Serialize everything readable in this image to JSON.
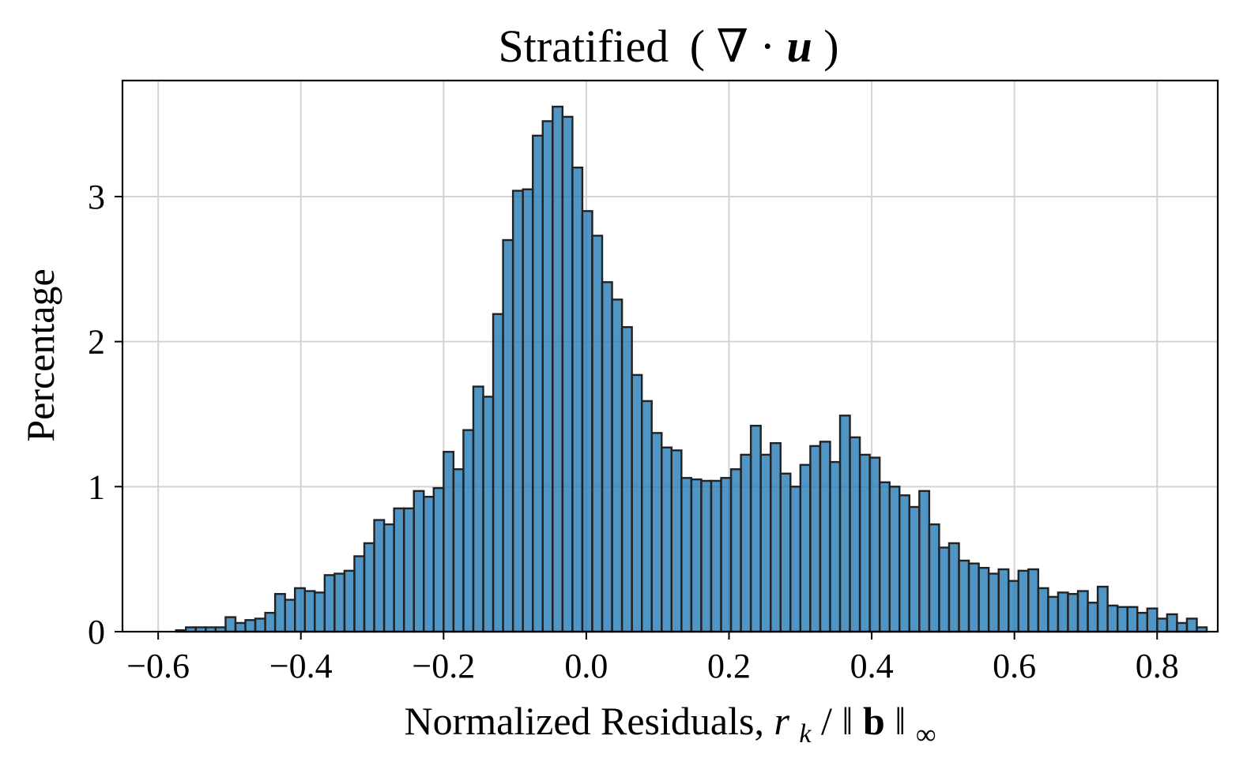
{
  "chart_data": {
    "type": "bar",
    "title": "Stratified (∇ · u)",
    "title_parts": {
      "text": "Stratified",
      "open": "(",
      "nabla": "∇",
      "dot": " · ",
      "var": "u",
      "close": ")"
    },
    "xlabel": "Normalized Residuals, r_k/‖b‖_∞",
    "xlabel_parts": {
      "text": "Normalized Residuals, ",
      "r": "r",
      "k": "k",
      "slash": "/",
      "norm_open": "‖",
      "b": "b",
      "norm_close": "‖",
      "inf": "∞"
    },
    "ylabel": "Percentage",
    "xlim": [
      -0.65,
      0.885
    ],
    "ylim": [
      0,
      3.8
    ],
    "grid": true,
    "bar_color": "#1f77b4",
    "edge_color": "#222222",
    "grid_color": "#d3d3d3",
    "x_ticks": [
      {
        "value": -0.6,
        "label": "−0.6"
      },
      {
        "value": -0.4,
        "label": "−0.4"
      },
      {
        "value": -0.2,
        "label": "−0.2"
      },
      {
        "value": 0.0,
        "label": "0.0"
      },
      {
        "value": 0.2,
        "label": "0.2"
      },
      {
        "value": 0.4,
        "label": "0.4"
      },
      {
        "value": 0.6,
        "label": "0.6"
      },
      {
        "value": 0.8,
        "label": "0.8"
      }
    ],
    "y_ticks": [
      {
        "value": 0,
        "label": "0"
      },
      {
        "value": 1,
        "label": "1"
      },
      {
        "value": 2,
        "label": "2"
      },
      {
        "value": 3,
        "label": "3"
      }
    ],
    "bin_start": -0.575,
    "bin_width": 0.01389,
    "values": [
      0.01,
      0.03,
      0.03,
      0.03,
      0.03,
      0.1,
      0.06,
      0.08,
      0.09,
      0.13,
      0.26,
      0.22,
      0.3,
      0.28,
      0.27,
      0.39,
      0.4,
      0.42,
      0.52,
      0.61,
      0.77,
      0.74,
      0.85,
      0.85,
      0.97,
      0.93,
      0.99,
      1.24,
      1.12,
      1.39,
      1.69,
      1.62,
      2.19,
      2.7,
      3.04,
      3.05,
      3.42,
      3.52,
      3.62,
      3.55,
      3.2,
      2.9,
      2.73,
      2.41,
      2.29,
      2.1,
      1.77,
      1.59,
      1.37,
      1.27,
      1.25,
      1.06,
      1.05,
      1.04,
      1.04,
      1.06,
      1.12,
      1.22,
      1.42,
      1.22,
      1.3,
      1.09,
      1.0,
      1.15,
      1.28,
      1.31,
      1.17,
      1.49,
      1.34,
      1.22,
      1.2,
      1.03,
      1.0,
      0.94,
      0.86,
      0.97,
      0.74,
      0.58,
      0.61,
      0.49,
      0.47,
      0.44,
      0.4,
      0.43,
      0.35,
      0.42,
      0.43,
      0.3,
      0.24,
      0.27,
      0.26,
      0.28,
      0.2,
      0.31,
      0.18,
      0.17,
      0.17,
      0.13,
      0.16,
      0.09,
      0.12,
      0.06,
      0.09,
      0.03
    ]
  }
}
